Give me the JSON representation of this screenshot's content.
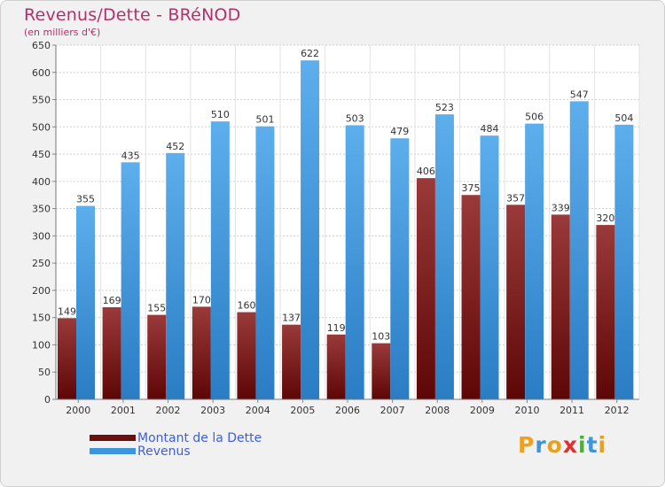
{
  "header": {
    "title": "Revenus/Dette - BRéNOD",
    "subtitle": "(en milliers d'€)"
  },
  "chart_data": {
    "type": "bar",
    "title": "Revenus/Dette - BRéNOD",
    "subtitle": "(en milliers d'€)",
    "categories": [
      "2000",
      "2001",
      "2002",
      "2003",
      "2004",
      "2005",
      "2006",
      "2007",
      "2008",
      "2009",
      "2010",
      "2011",
      "2012"
    ],
    "series": [
      {
        "name": "Montant de la Dette",
        "color": "#7a1a1a",
        "values": [
          149,
          169,
          155,
          170,
          160,
          137,
          119,
          103,
          406,
          375,
          357,
          339,
          320
        ]
      },
      {
        "name": "Revenus",
        "color": "#3d95de",
        "values": [
          355,
          435,
          452,
          510,
          501,
          622,
          503,
          479,
          523,
          484,
          506,
          547,
          504
        ]
      }
    ],
    "yticks": [
      0,
      50,
      100,
      150,
      200,
      250,
      300,
      350,
      400,
      450,
      500,
      550,
      600,
      650
    ],
    "ylim": [
      0,
      650
    ],
    "grid": true,
    "legend": "bottom-left"
  },
  "legend": {
    "items": [
      {
        "label": "Montant de la Dette",
        "color": "#6b0f0f"
      },
      {
        "label": "Revenus",
        "color": "#3d95de"
      }
    ]
  },
  "logo": {
    "letters": [
      "P",
      "r",
      "o",
      "x",
      "i",
      "t",
      "i"
    ],
    "colors": [
      "#f0a020",
      "#3d95de",
      "#e8a020",
      "#e03030",
      "#4caf3a",
      "#3d95de",
      "#e8a020"
    ]
  }
}
